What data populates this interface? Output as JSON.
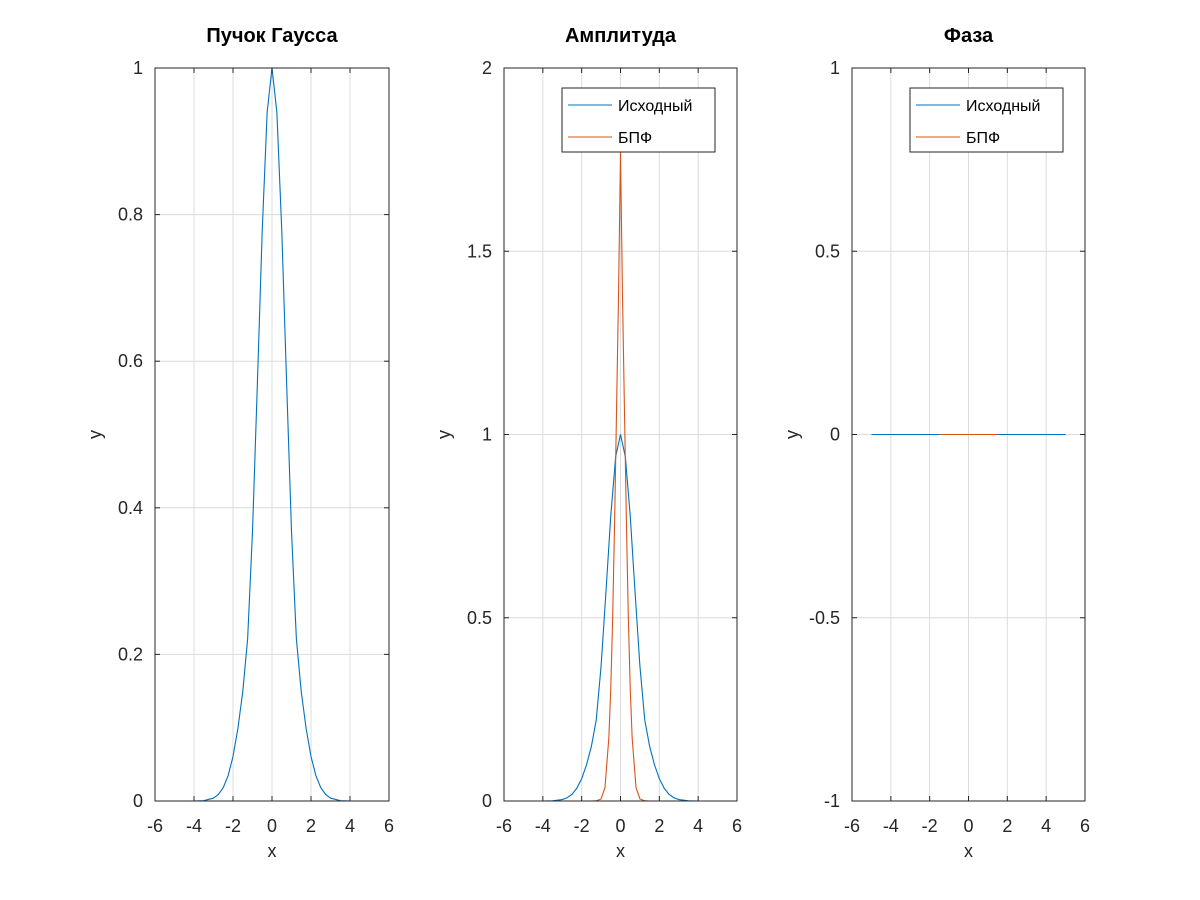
{
  "colors": {
    "series1": "#0072bd",
    "series2": "#d95319"
  },
  "chart_data": [
    {
      "type": "line",
      "title": "Пучок Гаусса",
      "xlabel": "x",
      "ylabel": "y",
      "xlim": [
        -6,
        6
      ],
      "ylim": [
        0,
        1
      ],
      "xticks": [
        -6,
        -4,
        -2,
        0,
        2,
        4,
        6
      ],
      "yticks": [
        0,
        0.2,
        0.4,
        0.6,
        0.8,
        1
      ],
      "xtick_labels": [
        "-6",
        "-4",
        "-2",
        "0",
        "2",
        "4",
        "6"
      ],
      "ytick_labels": [
        "0",
        "0.2",
        "0.4",
        "0.6",
        "0.8",
        "1"
      ],
      "grid": true,
      "legend": null,
      "series": [
        {
          "color": "#0072bd",
          "x": [
            -5,
            -4.5,
            -4,
            -3.5,
            -3,
            -2.75,
            -2.5,
            -2.25,
            -2,
            -1.75,
            -1.5,
            -1.25,
            -1,
            -0.75,
            -0.5,
            -0.25,
            0,
            0.25,
            0.5,
            0.75,
            1,
            1.25,
            1.5,
            1.75,
            2,
            2.25,
            2.5,
            2.75,
            3,
            3.5,
            4,
            4.5,
            5
          ],
          "y": [
            0,
            0,
            0,
            0.0004,
            0.004,
            0.0089,
            0.0183,
            0.0347,
            0.0608,
            0.0988,
            0.1492,
            0.2209,
            0.3679,
            0.5698,
            0.7788,
            0.9394,
            1,
            0.9394,
            0.7788,
            0.5698,
            0.3679,
            0.2209,
            0.1492,
            0.0988,
            0.0608,
            0.0347,
            0.0183,
            0.0089,
            0.004,
            0.0004,
            0,
            0,
            0
          ]
        }
      ]
    },
    {
      "type": "line",
      "title": "Амплитуда",
      "xlabel": "x",
      "ylabel": "y",
      "xlim": [
        -6,
        6
      ],
      "ylim": [
        0,
        2
      ],
      "xticks": [
        -6,
        -4,
        -2,
        0,
        2,
        4,
        6
      ],
      "yticks": [
        0,
        0.5,
        1,
        1.5,
        2
      ],
      "xtick_labels": [
        "-6",
        "-4",
        "-2",
        "0",
        "2",
        "4",
        "6"
      ],
      "ytick_labels": [
        "0",
        "0.5",
        "1",
        "1.5",
        "2"
      ],
      "grid": true,
      "legend": "top-right",
      "series": [
        {
          "name": "Исходный",
          "color": "#0072bd",
          "x": [
            -5,
            -4.5,
            -4,
            -3.5,
            -3,
            -2.75,
            -2.5,
            -2.25,
            -2,
            -1.75,
            -1.5,
            -1.25,
            -1,
            -0.75,
            -0.5,
            -0.25,
            0,
            0.25,
            0.5,
            0.75,
            1,
            1.25,
            1.5,
            1.75,
            2,
            2.25,
            2.5,
            2.75,
            3,
            3.5,
            4,
            4.5,
            5
          ],
          "y": [
            0,
            0,
            0,
            0.0004,
            0.004,
            0.0089,
            0.0183,
            0.0347,
            0.0608,
            0.0988,
            0.1492,
            0.2209,
            0.3679,
            0.5698,
            0.7788,
            0.9394,
            1,
            0.9394,
            0.7788,
            0.5698,
            0.3679,
            0.2209,
            0.1492,
            0.0988,
            0.0608,
            0.0347,
            0.0183,
            0.0089,
            0.004,
            0.0004,
            0,
            0,
            0
          ]
        },
        {
          "name": "БПФ",
          "color": "#d95319",
          "x": [
            -1.5,
            -1.25,
            -1,
            -0.8,
            -0.6,
            -0.5,
            -0.4,
            -0.3,
            -0.2,
            -0.1,
            0,
            0.1,
            0.2,
            0.3,
            0.4,
            0.5,
            0.6,
            0.8,
            1,
            1.25,
            1.5
          ],
          "y": [
            0,
            0.0004,
            0.0055,
            0.0366,
            0.1724,
            0.3081,
            0.5076,
            0.7714,
            1.0788,
            1.3876,
            1.77,
            1.3876,
            1.0788,
            0.7714,
            0.5076,
            0.3081,
            0.1724,
            0.0366,
            0.0055,
            0.0004,
            0
          ]
        }
      ]
    },
    {
      "type": "line",
      "title": "Фаза",
      "xlabel": "x",
      "ylabel": "y",
      "xlim": [
        -6,
        6
      ],
      "ylim": [
        -1,
        1
      ],
      "xticks": [
        -6,
        -4,
        -2,
        0,
        2,
        4,
        6
      ],
      "yticks": [
        -1,
        -0.5,
        0,
        0.5,
        1
      ],
      "xtick_labels": [
        "-6",
        "-4",
        "-2",
        "0",
        "2",
        "4",
        "6"
      ],
      "ytick_labels": [
        "-1",
        "-0.5",
        "0",
        "0.5",
        "1"
      ],
      "grid": true,
      "legend": "top-right",
      "series": [
        {
          "name": "Исходный",
          "color": "#0072bd",
          "x": [
            -5,
            5
          ],
          "y": [
            0,
            0
          ]
        },
        {
          "name": "БПФ",
          "color": "#d95319",
          "x": [
            -1.5,
            1.5
          ],
          "y": [
            0,
            0
          ]
        }
      ]
    }
  ]
}
